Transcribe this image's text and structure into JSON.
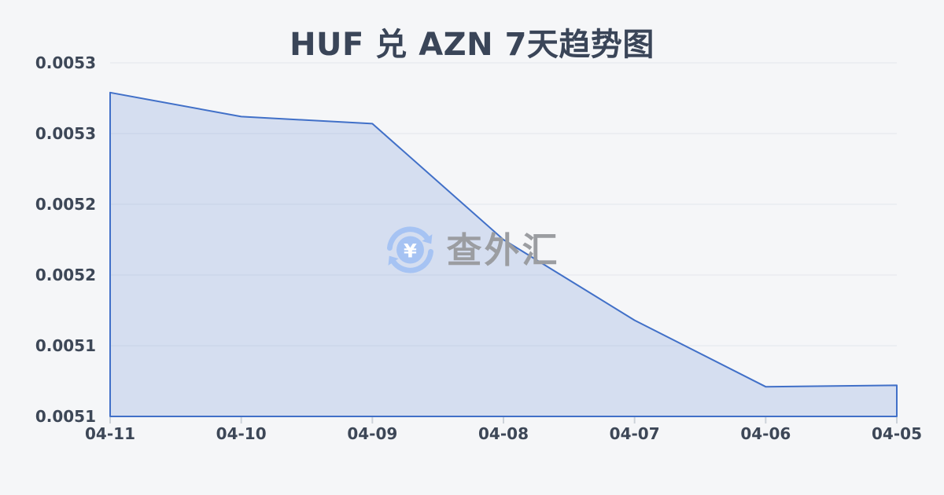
{
  "page": {
    "background_color": "#f5f6f8"
  },
  "chart_data": {
    "type": "area",
    "title": "HUF 兑 AZN 7天趋势图",
    "categories": [
      "04-11",
      "04-10",
      "04-09",
      "04-08",
      "04-07",
      "04-06",
      "04-05"
    ],
    "values": [
      0.005279,
      0.005262,
      0.005257,
      0.005175,
      0.005118,
      0.005071,
      0.005072
    ],
    "xlabel": "",
    "ylabel": "",
    "y_tick_labels": [
      "0.0053",
      "0.0053",
      "0.0052",
      "0.0052",
      "0.0051",
      "0.0051"
    ],
    "y_tick_values": [
      0.0053,
      0.00525,
      0.0052,
      0.00515,
      0.0051,
      0.00505
    ],
    "ylim": [
      0.00505,
      0.0053
    ],
    "grid": true,
    "legend": false,
    "line_color": "#4170c8",
    "fill_color": "rgba(99,138,214,0.22)",
    "grid_color": "#e4e7eb",
    "tick_color": "#ccd2d9",
    "axis_label_color": "#3d4757",
    "title_color": "#3a4558"
  },
  "watermark": {
    "text": "查外汇",
    "yen_symbol": "¥",
    "icon_color": "#a6c3f3",
    "yen_color": "#ffffff",
    "text_color": "#9b9da1"
  }
}
